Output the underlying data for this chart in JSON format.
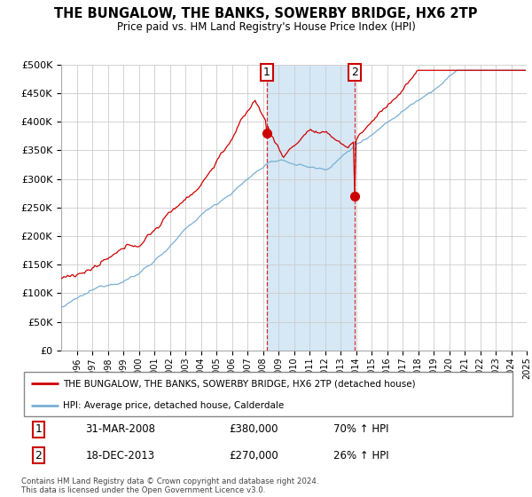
{
  "title": "THE BUNGALOW, THE BANKS, SOWERBY BRIDGE, HX6 2TP",
  "subtitle": "Price paid vs. HM Land Registry's House Price Index (HPI)",
  "ylim": [
    0,
    500000
  ],
  "yticks": [
    0,
    50000,
    100000,
    150000,
    200000,
    250000,
    300000,
    350000,
    400000,
    450000,
    500000
  ],
  "ytick_labels": [
    "£0",
    "£50K",
    "£100K",
    "£150K",
    "£200K",
    "£250K",
    "£300K",
    "£350K",
    "£400K",
    "£450K",
    "£500K"
  ],
  "hpi_color": "#7aafd4",
  "price_color": "#cc0000",
  "grid_color": "#cccccc",
  "shade_color": "#d6e8f5",
  "sale1_year": 2008.25,
  "sale1_price": 380000,
  "sale2_year": 2013.96,
  "sale2_price": 270000,
  "legend_line1": "THE BUNGALOW, THE BANKS, SOWERBY BRIDGE, HX6 2TP (detached house)",
  "legend_line2": "HPI: Average price, detached house, Calderdale",
  "footnote": "Contains HM Land Registry data © Crown copyright and database right 2024.\nThis data is licensed under the Open Government Licence v3.0.",
  "sale1_date_str": "31-MAR-2008",
  "sale1_price_str": "£380,000",
  "sale1_hpi_str": "70% ↑ HPI",
  "sale2_date_str": "18-DEC-2013",
  "sale2_price_str": "£270,000",
  "sale2_hpi_str": "26% ↑ HPI"
}
